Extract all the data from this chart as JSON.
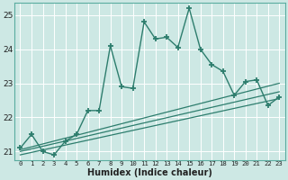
{
  "xlabel": "Humidex (Indice chaleur)",
  "ylabel": "",
  "x_data": [
    0,
    1,
    2,
    3,
    4,
    5,
    6,
    7,
    8,
    9,
    10,
    11,
    12,
    13,
    14,
    15,
    16,
    17,
    18,
    19,
    20,
    21,
    22,
    23
  ],
  "y_main": [
    21.1,
    21.5,
    21.0,
    20.9,
    21.3,
    21.5,
    22.2,
    22.2,
    24.1,
    22.9,
    22.85,
    24.8,
    24.3,
    24.35,
    24.05,
    25.2,
    24.0,
    23.55,
    23.35,
    22.65,
    23.05,
    23.1,
    22.35,
    22.6
  ],
  "reg_line1_x": [
    0,
    23
  ],
  "reg_line1_y": [
    21.05,
    23.0
  ],
  "reg_line2_x": [
    0,
    23
  ],
  "reg_line2_y": [
    21.0,
    22.75
  ],
  "reg_line3_x": [
    0,
    23
  ],
  "reg_line3_y": [
    20.9,
    22.55
  ],
  "line_color": "#2d7d6d",
  "bg_color": "#cde8e4",
  "grid_color": "#b0d8d2",
  "plot_bg": "#cde8e4",
  "ylim": [
    20.75,
    25.35
  ],
  "xlim": [
    -0.5,
    23.5
  ],
  "yticks": [
    21,
    22,
    23,
    24,
    25
  ],
  "xticks": [
    0,
    1,
    2,
    3,
    4,
    5,
    6,
    7,
    8,
    9,
    10,
    11,
    12,
    13,
    14,
    15,
    16,
    17,
    18,
    19,
    20,
    21,
    22,
    23
  ],
  "marker": "+",
  "markersize": 5,
  "linewidth": 1.0,
  "reg_linewidth": 0.9
}
